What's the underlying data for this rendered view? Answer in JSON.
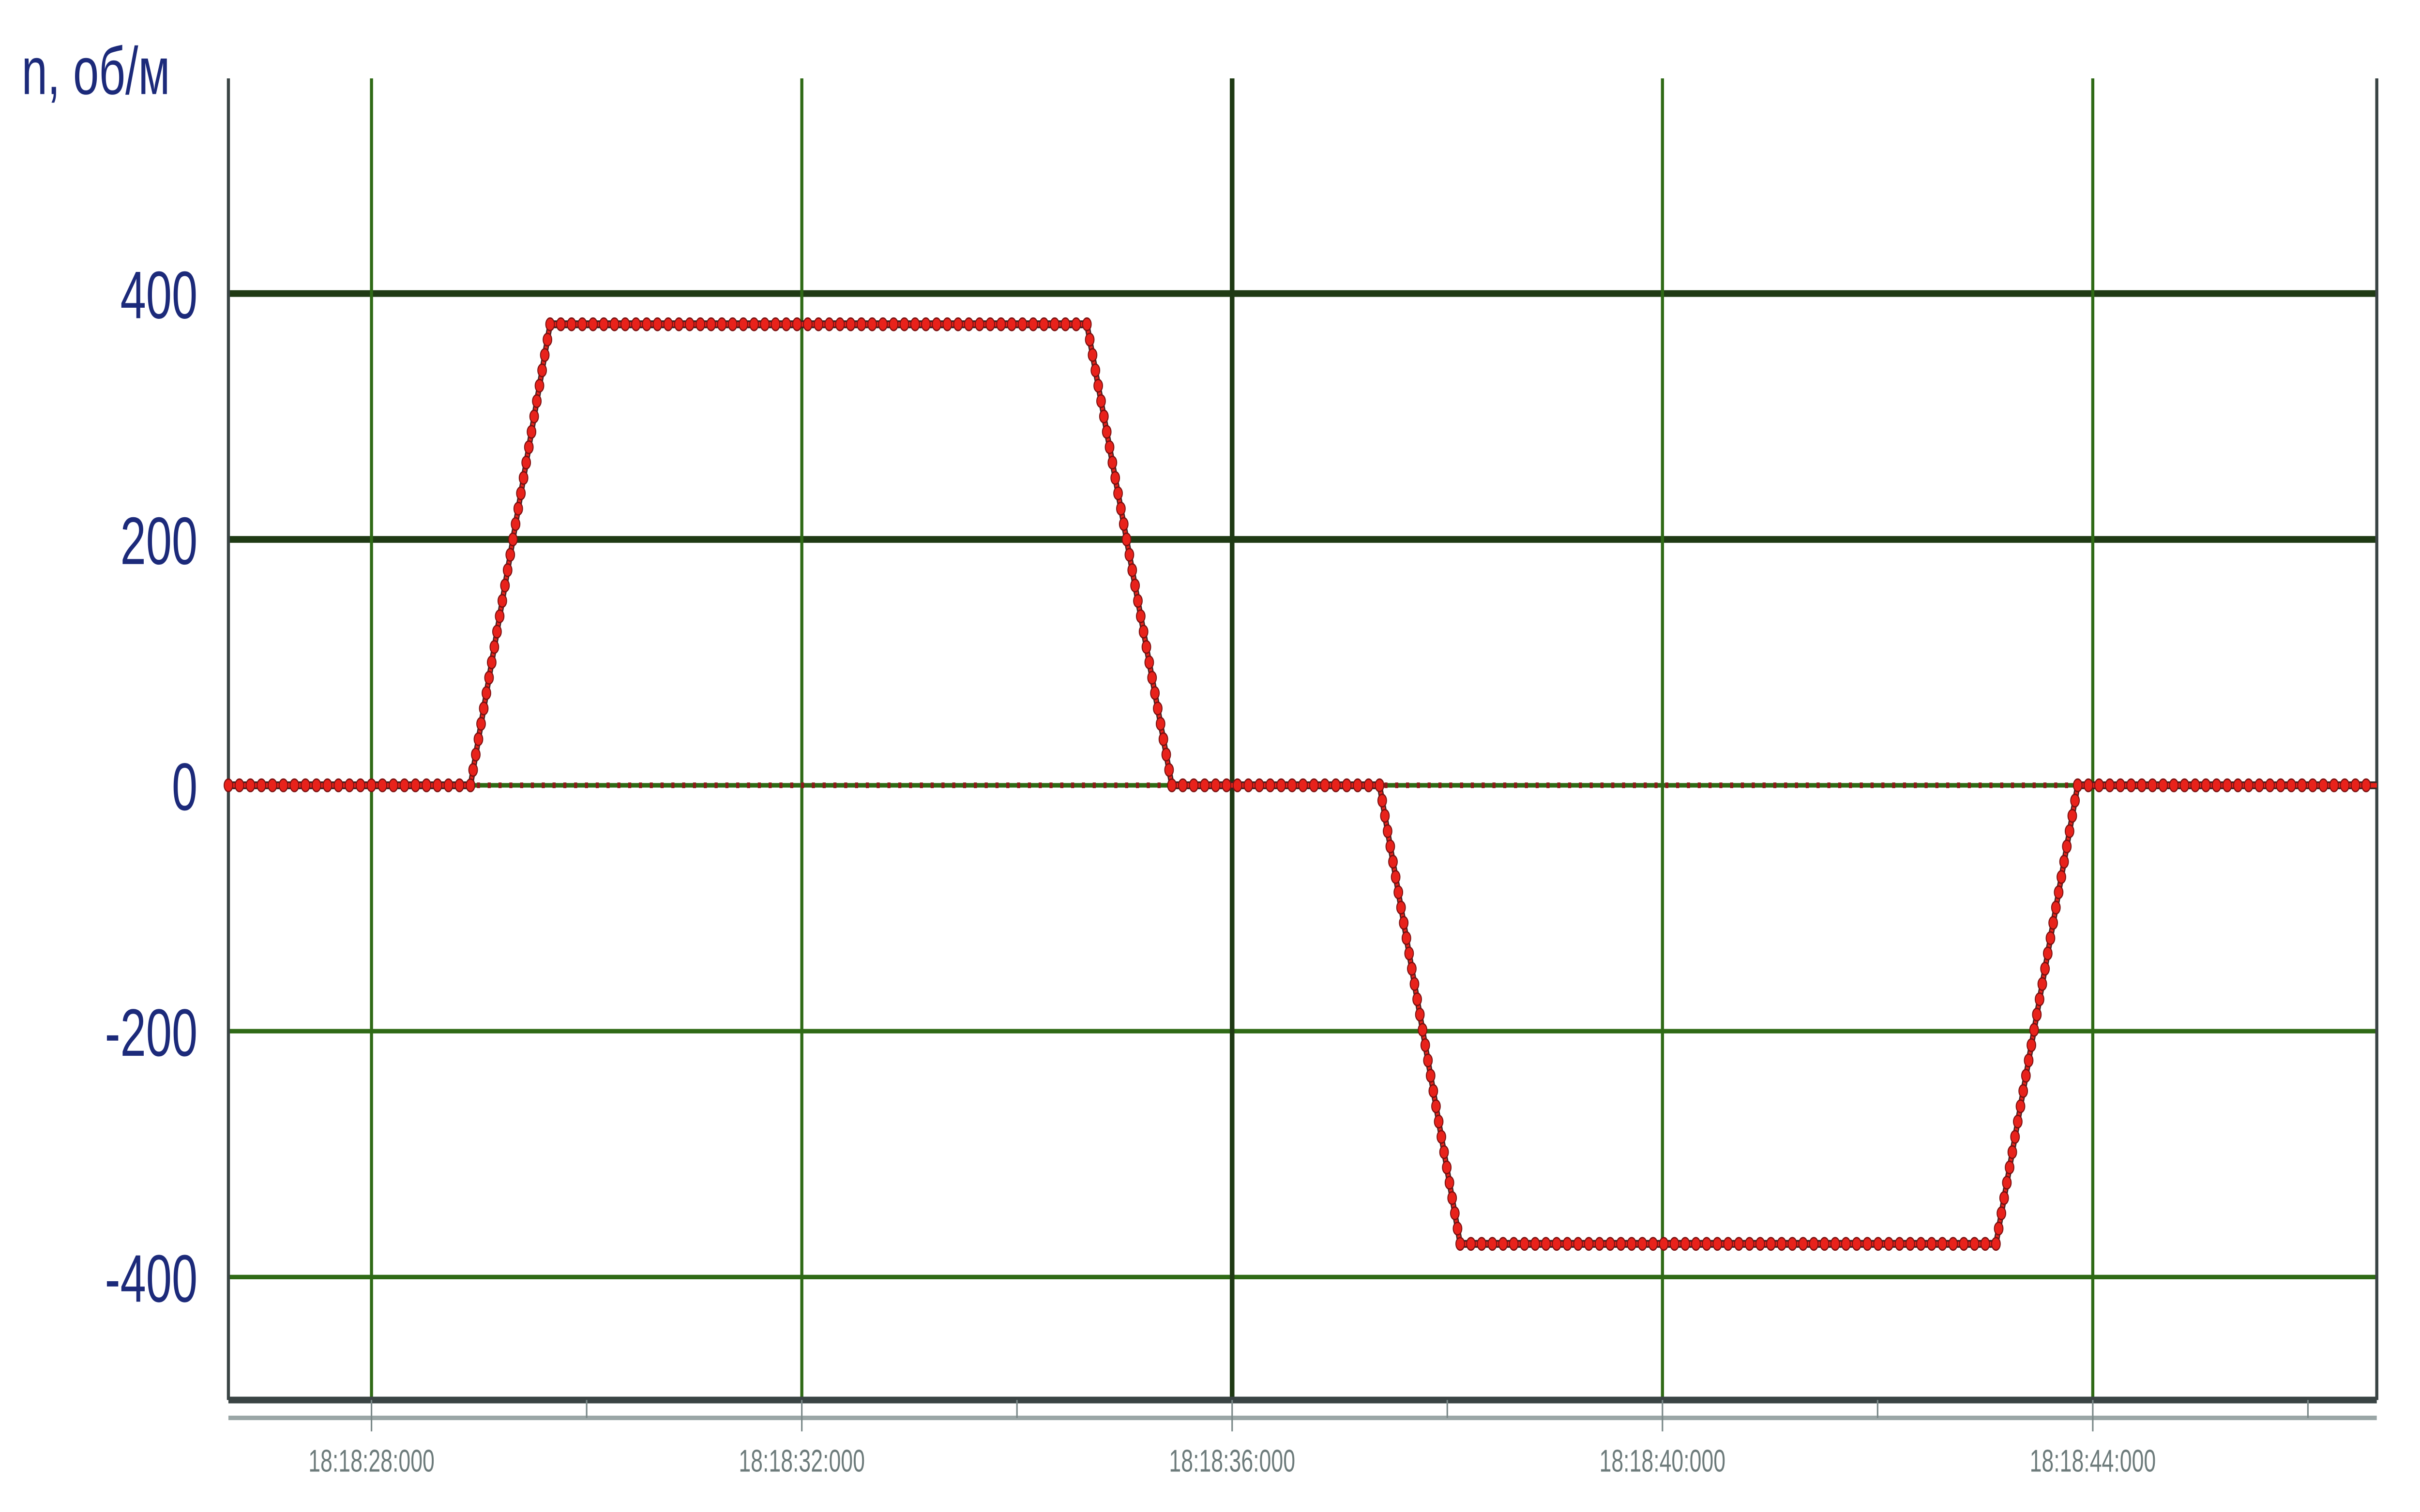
{
  "chart_data": {
    "type": "line",
    "title": "",
    "ylabel": "n, об/м",
    "xlabel": "",
    "x_unit": "time",
    "xlim": [
      "18:18:26.67",
      "18:18:46.64"
    ],
    "ylim": [
      -500,
      575
    ],
    "grid": true,
    "y_ticks": [
      400,
      200,
      0,
      -200,
      -400
    ],
    "y_tick_labels": [
      "400",
      "200",
      "0",
      "-200",
      "-400"
    ],
    "x_ticks": [
      "18:18:28.000",
      "18:18:32.000",
      "18:18:36.000",
      "18:18:40.000",
      "18:18:44.000"
    ],
    "x_tick_labels": [
      "18:18:28:000",
      "18:18:32:000",
      "18:18:36:000",
      "18:18:40:000",
      "18:18:44:000"
    ],
    "series": [
      {
        "color": "#e8221b",
        "marker": "circle",
        "x": [
          "18:18:26.67",
          "18:18:28.92",
          "18:18:29.66",
          "18:18:34.65",
          "18:18:35.44",
          "18:18:37.37",
          "18:18:38.12",
          "18:18:43.10",
          "18:18:43.86",
          "18:18:46.64"
        ],
        "y": [
          0,
          0,
          375,
          375,
          0,
          0,
          -373,
          -373,
          0,
          0
        ]
      },
      {
        "color": "#8b1a1a",
        "style": "dotted",
        "x": [
          "18:18:26.67",
          "18:18:46.64"
        ],
        "y": [
          0,
          0
        ]
      }
    ],
    "colors": {
      "grid": "#2f6a16",
      "axis_text": "#1c2a7a",
      "frame": "#3a4444"
    }
  }
}
